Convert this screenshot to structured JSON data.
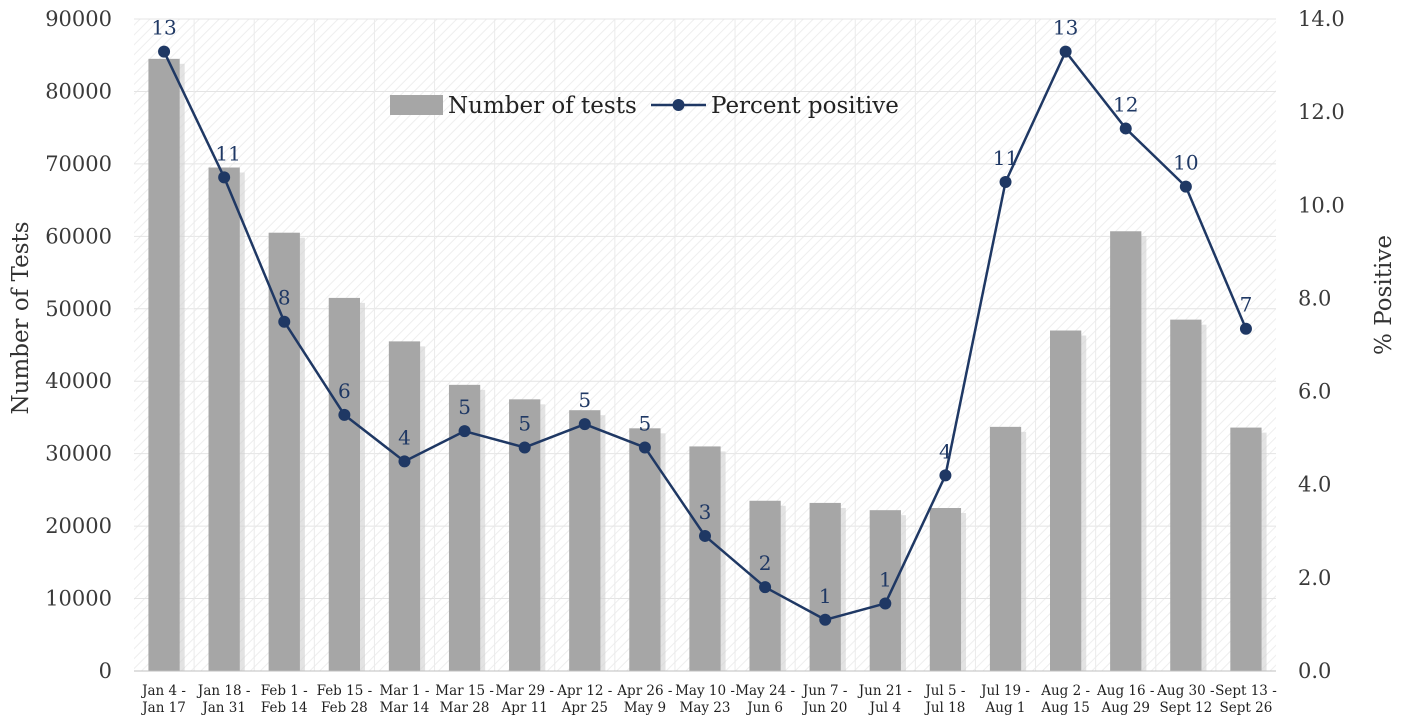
{
  "chart_data": {
    "type": "bar",
    "categories": [
      [
        "Jan 4 -",
        "Jan 17"
      ],
      [
        "Jan 18 -",
        "Jan 31"
      ],
      [
        "Feb 1 -",
        "Feb 14"
      ],
      [
        "Feb 15 -",
        "Feb 28"
      ],
      [
        "Mar 1 -",
        "Mar 14"
      ],
      [
        "Mar 15 -",
        "Mar 28"
      ],
      [
        "Mar 29 -",
        "Apr 11"
      ],
      [
        "Apr 12 -",
        "Apr 25"
      ],
      [
        "Apr 26 -",
        "May 9"
      ],
      [
        "May 10 -",
        "May 23"
      ],
      [
        "May 24 -",
        "Jun 6"
      ],
      [
        "Jun 7 -",
        "Jun 20"
      ],
      [
        "Jun 21 -",
        "Jul 4"
      ],
      [
        "Jul 5 -",
        "Jul 18"
      ],
      [
        "Jul 19 -",
        "Aug 1"
      ],
      [
        "Aug 2 -",
        "Aug 15"
      ],
      [
        "Aug 16 -",
        "Aug 29"
      ],
      [
        "Aug 30 -",
        "Sept 12"
      ],
      [
        "Sept 13 -",
        "Sept 26"
      ]
    ],
    "series": [
      {
        "name": "Number of tests",
        "type": "bar",
        "axis": "left",
        "color": "#a6a6a6",
        "values": [
          84500,
          69500,
          60500,
          51500,
          45500,
          39500,
          37500,
          36000,
          33500,
          31000,
          23500,
          23200,
          22200,
          22500,
          33700,
          47000,
          60700,
          48500,
          33600
        ]
      },
      {
        "name": "Percent positive",
        "type": "line",
        "axis": "right",
        "color": "#1f3864",
        "values": [
          13.3,
          10.6,
          7.5,
          5.5,
          4.5,
          5.15,
          4.8,
          5.3,
          4.8,
          2.9,
          1.8,
          1.1,
          1.45,
          4.2,
          10.5,
          13.3,
          11.65,
          10.4,
          7.35
        ],
        "data_labels": [
          "13",
          "11",
          "8",
          "6",
          "4",
          "5",
          "5",
          "5",
          "5",
          "3",
          "2",
          "1",
          "1",
          "4",
          "11",
          "13",
          "12",
          "10",
          "7"
        ]
      }
    ],
    "ylabel": "Number of Tests",
    "y2label": "% Positive",
    "ylim": [
      0,
      90000
    ],
    "y2lim": [
      0,
      14
    ],
    "yticks": [
      "0",
      "10000",
      "20000",
      "30000",
      "40000",
      "50000",
      "60000",
      "70000",
      "80000",
      "90000"
    ],
    "y2ticks": [
      "0.0",
      "2.0",
      "4.0",
      "6.0",
      "8.0",
      "10.0",
      "12.0",
      "14.0"
    ],
    "legend_position": "top-center",
    "grid": true
  }
}
